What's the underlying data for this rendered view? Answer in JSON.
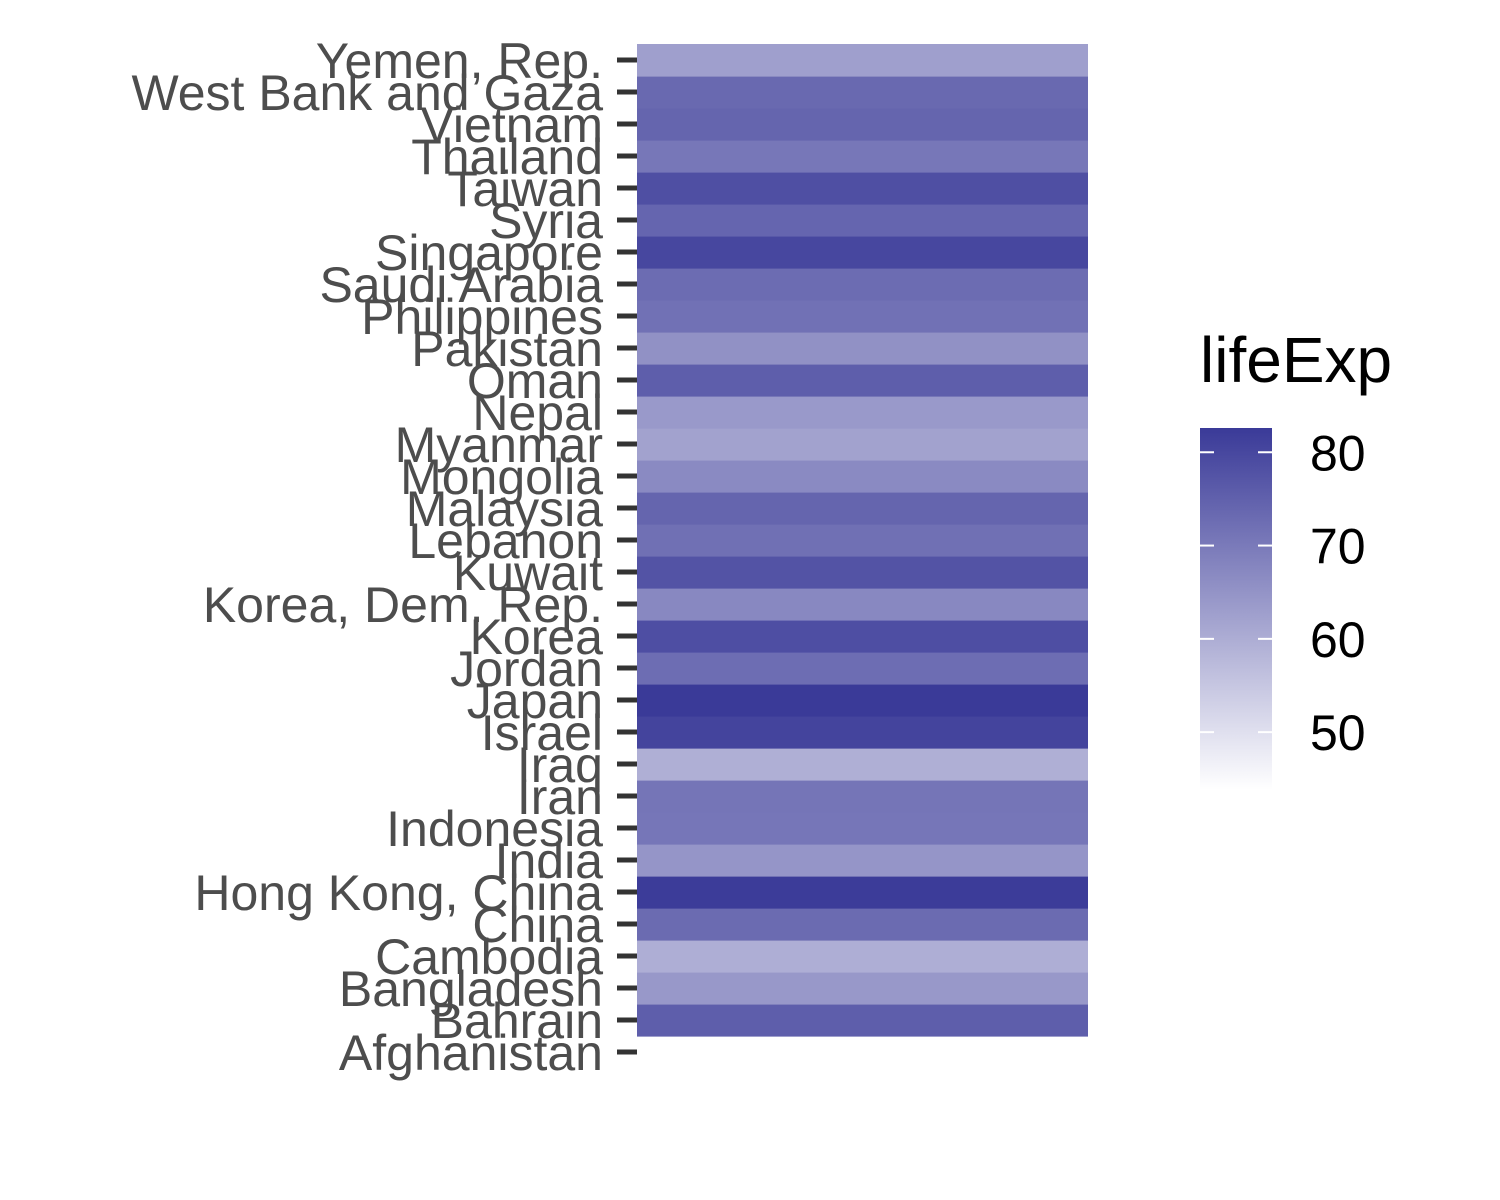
{
  "chart_data": {
    "type": "heatmap",
    "categories": [
      "Afghanistan",
      "Bahrain",
      "Bangladesh",
      "Cambodia",
      "China",
      "Hong Kong, China",
      "India",
      "Indonesia",
      "Iran",
      "Iraq",
      "Israel",
      "Japan",
      "Jordan",
      "Korea",
      "Korea, Dem. Rep.",
      "Kuwait",
      "Lebanon",
      "Malaysia",
      "Mongolia",
      "Myanmar",
      "Nepal",
      "Oman",
      "Pakistan",
      "Philippines",
      "Saudi Arabia",
      "Singapore",
      "Syria",
      "Taiwan",
      "Thailand",
      "Vietnam",
      "West Bank and Gaza",
      "Yemen, Rep."
    ],
    "values": [
      43.8,
      75.6,
      64.1,
      59.7,
      73.0,
      82.2,
      64.7,
      70.7,
      71.0,
      59.5,
      80.7,
      82.6,
      72.5,
      78.6,
      67.3,
      77.6,
      72.0,
      74.2,
      66.8,
      62.1,
      63.8,
      75.6,
      65.5,
      71.7,
      72.8,
      80.0,
      74.1,
      78.4,
      70.6,
      74.2,
      73.4,
      62.7
    ],
    "xlabel": "",
    "ylabel": "",
    "legend": {
      "title": "lifeExp",
      "position": "right",
      "ticks": [
        50,
        60,
        70,
        80
      ],
      "range": [
        43.8,
        82.6
      ]
    },
    "colors": {
      "low": "#ffffff",
      "high": "#3a3a98"
    },
    "grid": false
  }
}
